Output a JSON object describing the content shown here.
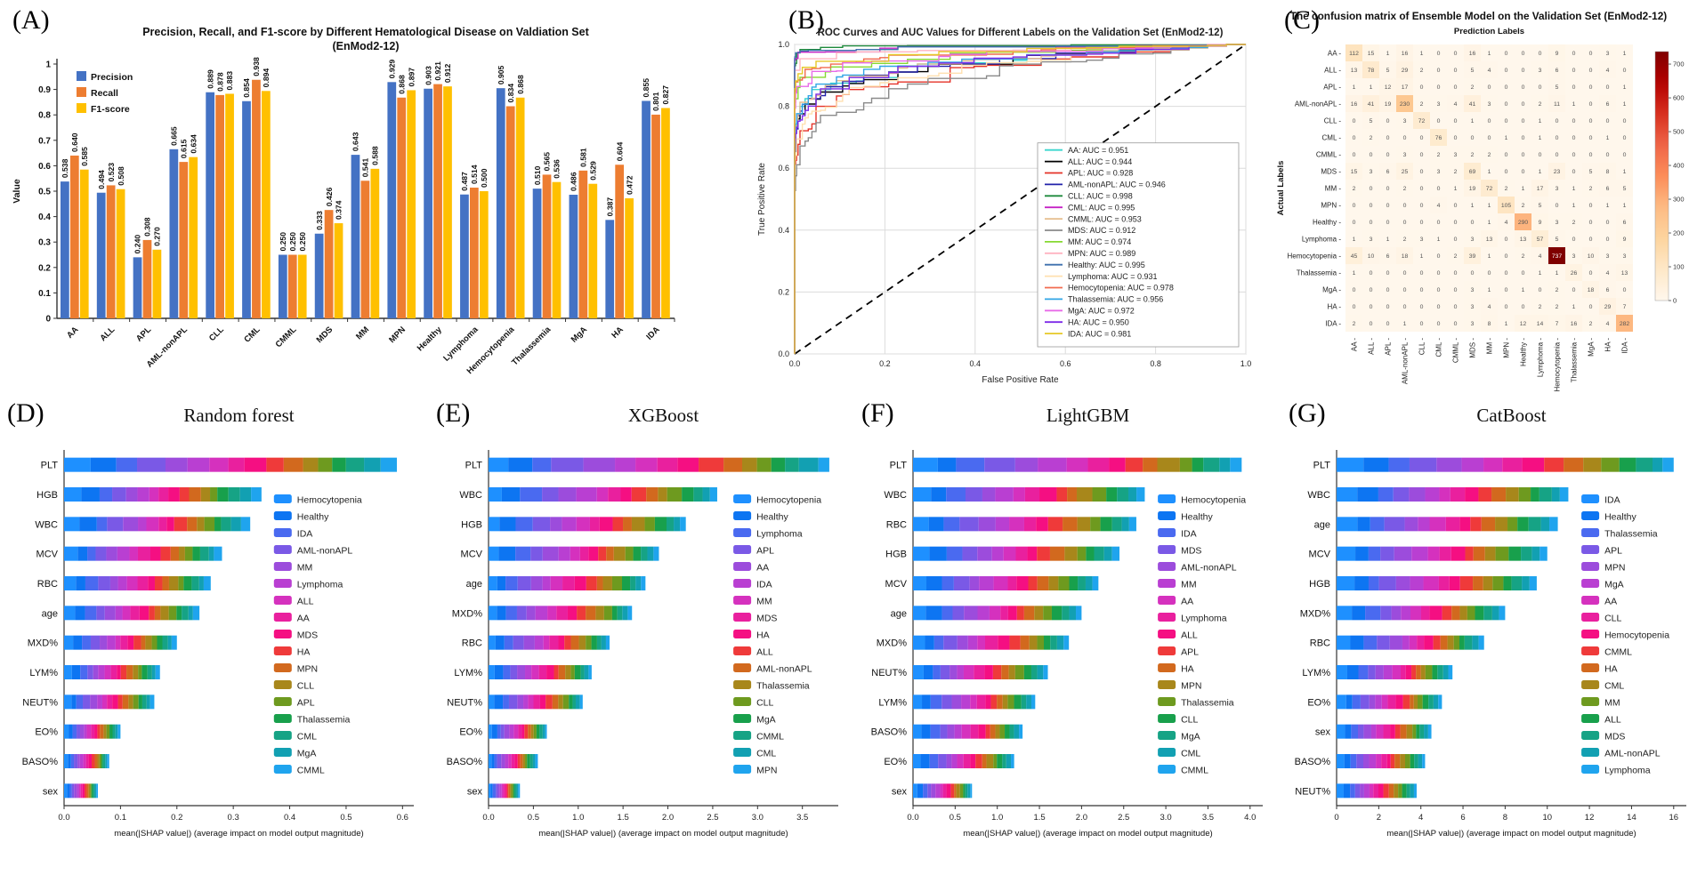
{
  "panels": {
    "a": "(A)",
    "b": "(B)",
    "c": "(C)",
    "d": "(D)",
    "e": "(E)",
    "f": "(F)",
    "g": "(G)"
  },
  "shap_colors": [
    "#1E90FF",
    "#0D75F2",
    "#4A6AF0",
    "#7A59E6",
    "#9C4CDC",
    "#B93FD2",
    "#D531BE",
    "#E9209E",
    "#F50F82",
    "#EF3A3A",
    "#D2691E",
    "#A8871B",
    "#6E9A1F",
    "#18A04C",
    "#16A385",
    "#12A0B2",
    "#1FA4EE"
  ],
  "chart_data": [
    {
      "id": "A",
      "type": "bar",
      "title": "Precision, Recall, and F1-score by Different Hematological Disease on Valdiation Set",
      "subtitle": "(EnMod2-12)",
      "ylabel": "Value",
      "ylim": [
        0,
        1
      ],
      "ytick_labels": [
        "0",
        "0.1",
        "0.2",
        "0.3",
        "0.4",
        "0.5",
        "0.6",
        "0.7",
        "0.8",
        "0.9",
        "1"
      ],
      "categories": [
        "AA",
        "ALL",
        "APL",
        "AML-nonAPL",
        "CLL",
        "CML",
        "CMML",
        "MDS",
        "MM",
        "MPN",
        "Healthy",
        "Lymphoma",
        "Hemocytopenia",
        "Thalassemia",
        "MgA",
        "HA",
        "IDA"
      ],
      "series": [
        {
          "name": "Precision",
          "color": "#4472C4",
          "values": [
            0.538,
            0.494,
            0.24,
            0.665,
            0.889,
            0.854,
            0.25,
            0.333,
            0.643,
            0.929,
            0.903,
            0.487,
            0.905,
            0.51,
            0.486,
            0.387,
            0.855
          ]
        },
        {
          "name": "Recall",
          "color": "#ED7D31",
          "values": [
            0.64,
            0.523,
            0.308,
            0.615,
            0.878,
            0.938,
            0.25,
            0.426,
            0.541,
            0.868,
            0.921,
            0.514,
            0.834,
            0.565,
            0.581,
            0.604,
            0.801
          ]
        },
        {
          "name": "F1-score",
          "color": "#FFC000",
          "values": [
            0.585,
            0.508,
            0.27,
            0.634,
            0.883,
            0.894,
            0.25,
            0.374,
            0.588,
            0.897,
            0.912,
            0.5,
            0.868,
            0.536,
            0.529,
            0.472,
            0.827
          ]
        }
      ]
    },
    {
      "id": "B",
      "type": "line",
      "title": "ROC Curves and AUC Values for Different Labels on the Validation Set (EnMod2-12)",
      "xlabel": "False Positive Rate",
      "ylabel": "True Positive Rate",
      "xtick_labels": [
        "0.0",
        "0.2",
        "0.4",
        "0.6",
        "0.8",
        "1.0"
      ],
      "ytick_labels": [
        "0.0",
        "0.2",
        "0.4",
        "0.6",
        "0.8",
        "1.0"
      ],
      "grid": true,
      "diagonal": true,
      "legend_position": "lower right",
      "series": [
        {
          "label": "AA",
          "auc": 0.951,
          "color": "#3BD6CE"
        },
        {
          "label": "ALL",
          "auc": 0.944,
          "color": "#000000"
        },
        {
          "label": "APL",
          "auc": 0.928,
          "color": "#E53228"
        },
        {
          "label": "AML-nonAPL",
          "auc": 0.946,
          "color": "#2222AA"
        },
        {
          "label": "CLL",
          "auc": 0.998,
          "color": "#1E8A3C"
        },
        {
          "label": "CML",
          "auc": 0.995,
          "color": "#C524C5"
        },
        {
          "label": "CMML",
          "auc": 0.953,
          "color": "#E6BE8E"
        },
        {
          "label": "MDS",
          "auc": 0.912,
          "color": "#8A8A8A"
        },
        {
          "label": "MM",
          "auc": 0.974,
          "color": "#86D932"
        },
        {
          "label": "MPN",
          "auc": 0.989,
          "color": "#FFB3C1"
        },
        {
          "label": "Healthy",
          "auc": 0.995,
          "color": "#3F71AE"
        },
        {
          "label": "Lymphoma",
          "auc": 0.931,
          "color": "#FFE0B0"
        },
        {
          "label": "Hemocytopenia",
          "auc": 0.978,
          "color": "#F26B4F"
        },
        {
          "label": "Thalassemia",
          "auc": 0.956,
          "color": "#31A5E6"
        },
        {
          "label": "MgA",
          "auc": 0.972,
          "color": "#E86BE8"
        },
        {
          "label": "HA",
          "auc": 0.95,
          "color": "#7D2AE8"
        },
        {
          "label": "IDA",
          "auc": 0.981,
          "color": "#E6C827"
        }
      ]
    },
    {
      "id": "C",
      "type": "heatmap",
      "title": "The confusion matrix of Ensemble Model on the Validation Set (EnMod2-12)",
      "xlabel": "Prediction Labels",
      "ylabel": "Actual Labels",
      "labels": [
        "AA",
        "ALL",
        "APL",
        "AML-nonAPL",
        "CLL",
        "CML",
        "CMML",
        "MDS",
        "MM",
        "MPN",
        "Healthy",
        "Lymphoma",
        "Hemocytopenia",
        "Thalassemia",
        "MgA",
        "HA",
        "IDA"
      ],
      "matrix": [
        [
          112,
          15,
          1,
          16,
          1,
          0,
          0,
          16,
          1,
          0,
          0,
          0,
          9,
          0,
          0,
          3,
          1
        ],
        [
          13,
          78,
          5,
          29,
          2,
          0,
          0,
          5,
          4,
          0,
          0,
          3,
          6,
          0,
          0,
          4,
          0
        ],
        [
          1,
          1,
          12,
          17,
          0,
          0,
          0,
          2,
          0,
          0,
          0,
          0,
          5,
          0,
          0,
          0,
          1
        ],
        [
          16,
          41,
          19,
          230,
          2,
          3,
          4,
          41,
          3,
          0,
          0,
          2,
          11,
          1,
          0,
          6,
          1
        ],
        [
          0,
          5,
          0,
          3,
          72,
          0,
          0,
          1,
          0,
          0,
          0,
          1,
          0,
          0,
          0,
          0,
          0
        ],
        [
          0,
          2,
          0,
          0,
          0,
          76,
          0,
          0,
          0,
          1,
          0,
          1,
          0,
          0,
          0,
          1,
          0
        ],
        [
          0,
          0,
          0,
          3,
          0,
          2,
          3,
          2,
          2,
          0,
          0,
          0,
          0,
          0,
          0,
          0,
          0
        ],
        [
          15,
          3,
          6,
          25,
          0,
          3,
          2,
          69,
          1,
          0,
          0,
          1,
          23,
          0,
          5,
          8,
          1
        ],
        [
          2,
          0,
          0,
          2,
          0,
          0,
          1,
          19,
          72,
          2,
          1,
          17,
          3,
          1,
          2,
          6,
          5
        ],
        [
          0,
          0,
          0,
          0,
          0,
          4,
          0,
          1,
          1,
          105,
          2,
          5,
          0,
          1,
          0,
          1,
          1
        ],
        [
          0,
          0,
          0,
          0,
          0,
          0,
          0,
          0,
          1,
          4,
          290,
          9,
          3,
          2,
          0,
          0,
          6
        ],
        [
          1,
          3,
          1,
          2,
          3,
          1,
          0,
          3,
          13,
          0,
          13,
          57,
          5,
          0,
          0,
          0,
          9
        ],
        [
          45,
          10,
          6,
          18,
          1,
          0,
          2,
          39,
          1,
          0,
          2,
          4,
          737,
          3,
          10,
          3,
          3
        ],
        [
          1,
          0,
          0,
          0,
          0,
          0,
          0,
          0,
          0,
          0,
          0,
          1,
          1,
          26,
          0,
          4,
          13
        ],
        [
          0,
          0,
          0,
          0,
          0,
          0,
          0,
          3,
          1,
          0,
          1,
          0,
          2,
          0,
          18,
          6,
          0
        ],
        [
          0,
          0,
          0,
          0,
          0,
          0,
          0,
          3,
          4,
          0,
          0,
          2,
          2,
          1,
          0,
          29,
          7
        ],
        [
          2,
          0,
          0,
          1,
          0,
          0,
          0,
          3,
          8,
          1,
          12,
          14,
          7,
          16,
          2,
          4,
          282
        ]
      ],
      "vmax": 737,
      "colorbar_ticks": [
        700,
        600,
        500,
        400,
        300,
        200,
        100,
        0
      ]
    },
    {
      "id": "D",
      "type": "bar",
      "orientation": "horizontal",
      "stacked": true,
      "title": "Random forest",
      "xlabel": "mean(|SHAP value|) (average impact on model output magnitude)",
      "features": [
        "PLT",
        "HGB",
        "WBC",
        "MCV",
        "RBC",
        "age",
        "MXD%",
        "LYM%",
        "NEUT%",
        "EO%",
        "BASO%",
        "sex"
      ],
      "totals": [
        0.59,
        0.35,
        0.33,
        0.28,
        0.26,
        0.24,
        0.2,
        0.17,
        0.16,
        0.1,
        0.08,
        0.06
      ],
      "xtick_values": [
        0.0,
        0.1,
        0.2,
        0.3,
        0.4,
        0.5,
        0.6
      ],
      "xtick_labels": [
        "0.0",
        "0.1",
        "0.2",
        "0.3",
        "0.4",
        "0.5",
        "0.6"
      ],
      "xmax": 0.62,
      "legend_x_frac": 0.6,
      "legend": [
        "Hemocytopenia",
        "Healthy",
        "IDA",
        "AML-nonAPL",
        "MM",
        "Lymphoma",
        "ALL",
        "AA",
        "MDS",
        "HA",
        "MPN",
        "CLL",
        "APL",
        "Thalassemia",
        "CML",
        "MgA",
        "CMML"
      ]
    },
    {
      "id": "E",
      "type": "bar",
      "orientation": "horizontal",
      "stacked": true,
      "title": "XGBoost",
      "xlabel": "mean(|SHAP value|) (average impact on model output magnitude)",
      "features": [
        "PLT",
        "WBC",
        "HGB",
        "MCV",
        "age",
        "MXD%",
        "RBC",
        "LYM%",
        "NEUT%",
        "EO%",
        "BASO%",
        "sex"
      ],
      "totals": [
        3.8,
        2.55,
        2.2,
        1.9,
        1.75,
        1.6,
        1.35,
        1.15,
        1.05,
        0.65,
        0.55,
        0.35
      ],
      "xtick_values": [
        0.0,
        0.5,
        1.0,
        1.5,
        2.0,
        2.5,
        3.0,
        3.5
      ],
      "xtick_labels": [
        "0.0",
        "0.5",
        "1.0",
        "1.5",
        "2.0",
        "2.5",
        "3.0",
        "3.5"
      ],
      "xmax": 3.9,
      "legend_x_frac": 0.7,
      "legend": [
        "Hemocytopenia",
        "Healthy",
        "Lymphoma",
        "APL",
        "AA",
        "IDA",
        "MM",
        "MDS",
        "HA",
        "ALL",
        "AML-nonAPL",
        "Thalassemia",
        "CLL",
        "MgA",
        "CMML",
        "CML",
        "MPN"
      ]
    },
    {
      "id": "F",
      "type": "bar",
      "orientation": "horizontal",
      "stacked": true,
      "title": "LightGBM",
      "xlabel": "mean(|SHAP value|) (average impact on model output magnitude)",
      "features": [
        "PLT",
        "WBC",
        "RBC",
        "HGB",
        "MCV",
        "age",
        "MXD%",
        "NEUT%",
        "LYM%",
        "BASO%",
        "EO%",
        "sex"
      ],
      "totals": [
        3.9,
        2.75,
        2.65,
        2.45,
        2.2,
        2.0,
        1.85,
        1.6,
        1.45,
        1.3,
        1.2,
        0.7
      ],
      "xtick_values": [
        0.0,
        0.5,
        1.0,
        1.5,
        2.0,
        2.5,
        3.0,
        3.5,
        4.0
      ],
      "xtick_labels": [
        "0.0",
        "0.5",
        "1.0",
        "1.5",
        "2.0",
        "2.5",
        "3.0",
        "3.5",
        "4.0"
      ],
      "xmax": 4.15,
      "legend_x_frac": 0.7,
      "legend": [
        "Hemocytopenia",
        "Healthy",
        "IDA",
        "MDS",
        "AML-nonAPL",
        "MM",
        "AA",
        "Lymphoma",
        "ALL",
        "APL",
        "HA",
        "MPN",
        "Thalassemia",
        "CLL",
        "MgA",
        "CML",
        "CMML"
      ]
    },
    {
      "id": "G",
      "type": "bar",
      "orientation": "horizontal",
      "stacked": true,
      "title": "CatBoost",
      "xlabel": "mean(|SHAP value|) (average impact on model output magnitude)",
      "features": [
        "PLT",
        "WBC",
        "age",
        "MCV",
        "HGB",
        "MXD%",
        "RBC",
        "LYM%",
        "EO%",
        "sex",
        "BASO%",
        "NEUT%"
      ],
      "totals": [
        16.0,
        11.0,
        10.5,
        10.0,
        9.5,
        8.0,
        7.0,
        5.5,
        5.0,
        4.5,
        4.2,
        3.8
      ],
      "xtick_values": [
        0,
        2,
        4,
        6,
        8,
        10,
        12,
        14,
        16
      ],
      "xtick_labels": [
        "0",
        "2",
        "4",
        "6",
        "8",
        "10",
        "12",
        "14",
        "16"
      ],
      "xmax": 16.6,
      "legend_x_frac": 0.7,
      "legend": [
        "IDA",
        "Healthy",
        "Thalassemia",
        "APL",
        "MPN",
        "MgA",
        "AA",
        "CLL",
        "Hemocytopenia",
        "CMML",
        "HA",
        "CML",
        "MM",
        "ALL",
        "MDS",
        "AML-nonAPL",
        "Lymphoma"
      ]
    }
  ]
}
